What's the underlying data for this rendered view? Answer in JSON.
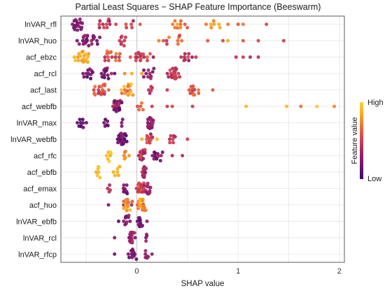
{
  "chart_data": {
    "type": "scatter",
    "subtype": "beeswarm",
    "title": "Partial Least Squares − SHAP Feature Importance (Beeswarm)",
    "xlabel": "SHAP value",
    "ylabel": "",
    "xlim": [
      -0.75,
      2.05
    ],
    "xticks": [
      0,
      1,
      2
    ],
    "grid": true,
    "legend": {
      "title": "Feature value",
      "high_label": "High",
      "low_label": "Low",
      "placement": "right",
      "colormap": [
        "#3b0a6b",
        "#6b1470",
        "#9c2468",
        "#cc3f55",
        "#ed6a38",
        "#f8a81a",
        "#f9d43a"
      ]
    },
    "features": [
      {
        "name": "lnVAR_rfl",
        "clusters": [
          {
            "center": -0.6,
            "spread": 0.12,
            "count": 20,
            "v": [
              0.15,
              0.35
            ]
          },
          {
            "center": -0.3,
            "spread": 0.12,
            "count": 12,
            "v": [
              0.35,
              0.55
            ]
          },
          {
            "center": -0.05,
            "spread": 0.1,
            "count": 6,
            "v": [
              0.35,
              0.6
            ]
          },
          {
            "center": 0.4,
            "spread": 0.16,
            "count": 10,
            "v": [
              0.55,
              0.85
            ]
          },
          {
            "center": 0.75,
            "spread": 0.08,
            "count": 6,
            "v": [
              0.7,
              0.9
            ]
          }
        ],
        "points": [
          [
            1.0,
            0.6
          ],
          [
            1.05,
            0.7
          ],
          [
            1.28,
            0.55
          ],
          [
            0.82,
            0.85
          ],
          [
            0.9,
            0.7
          ]
        ]
      },
      {
        "name": "lnVAR_huo",
        "clusters": [
          {
            "center": -0.48,
            "spread": 0.14,
            "count": 26,
            "v": [
              0.1,
              0.35
            ]
          },
          {
            "center": -0.15,
            "spread": 0.1,
            "count": 8,
            "v": [
              0.3,
              0.55
            ]
          },
          {
            "center": 0.35,
            "spread": 0.18,
            "count": 10,
            "v": [
              0.45,
              0.75
            ]
          }
        ],
        "points": [
          [
            0.85,
            0.55
          ],
          [
            0.9,
            0.85
          ],
          [
            1.05,
            0.6
          ],
          [
            1.2,
            0.55
          ],
          [
            1.45,
            0.5
          ],
          [
            0.7,
            0.6
          ]
        ]
      },
      {
        "name": "acf_ebzc",
        "clusters": [
          {
            "center": -0.55,
            "spread": 0.12,
            "count": 22,
            "v": [
              0.75,
              0.95
            ]
          },
          {
            "center": -0.25,
            "spread": 0.12,
            "count": 16,
            "v": [
              0.4,
              0.75
            ]
          },
          {
            "center": 0.05,
            "spread": 0.15,
            "count": 18,
            "v": [
              0.3,
              0.65
            ]
          },
          {
            "center": 0.5,
            "spread": 0.12,
            "count": 10,
            "v": [
              0.3,
              0.55
            ]
          }
        ],
        "points": [
          [
            0.98,
            0.45
          ],
          [
            1.05,
            0.5
          ],
          [
            1.12,
            0.4
          ],
          [
            1.2,
            0.45
          ]
        ]
      },
      {
        "name": "acf_rcl",
        "clusters": [
          {
            "center": -0.5,
            "spread": 0.12,
            "count": 12,
            "v": [
              0.05,
              0.3
            ]
          },
          {
            "center": -0.28,
            "spread": 0.1,
            "count": 14,
            "v": [
              0.1,
              0.4
            ]
          },
          {
            "center": 0.1,
            "spread": 0.12,
            "count": 10,
            "v": [
              0.2,
              0.45
            ]
          },
          {
            "center": 0.37,
            "spread": 0.08,
            "count": 22,
            "v": [
              0.35,
              0.55
            ]
          }
        ],
        "points": [
          [
            -0.12,
            0.75
          ],
          [
            -0.05,
            0.85
          ],
          [
            0.05,
            0.8
          ]
        ]
      },
      {
        "name": "acf_last",
        "clusters": [
          {
            "center": -0.35,
            "spread": 0.12,
            "count": 20,
            "v": [
              0.35,
              0.7
            ]
          },
          {
            "center": -0.1,
            "spread": 0.08,
            "count": 18,
            "v": [
              0.6,
              0.95
            ]
          },
          {
            "center": 0.15,
            "spread": 0.06,
            "count": 6,
            "v": [
              0.3,
              0.55
            ]
          },
          {
            "center": 0.55,
            "spread": 0.1,
            "count": 14,
            "v": [
              0.45,
              0.75
            ]
          }
        ],
        "points": [
          [
            0.3,
            0.5
          ],
          [
            0.75,
            0.6
          ]
        ]
      },
      {
        "name": "acf_webfb",
        "clusters": [
          {
            "center": -0.2,
            "spread": 0.06,
            "count": 42,
            "v": [
              0.05,
              0.5
            ]
          },
          {
            "center": 0.05,
            "spread": 0.06,
            "count": 5,
            "v": [
              0.5,
              0.75
            ]
          }
        ],
        "points": [
          [
            0.15,
            0.5
          ],
          [
            0.35,
            0.55
          ],
          [
            0.55,
            0.5
          ],
          [
            1.08,
            0.9
          ],
          [
            1.48,
            0.9
          ],
          [
            1.62,
            0.7
          ],
          [
            1.78,
            0.95
          ],
          [
            1.95,
            0.75
          ],
          [
            0.3,
            0.5
          ]
        ]
      },
      {
        "name": "lnVAR_max",
        "clusters": [
          {
            "center": -0.55,
            "spread": 0.06,
            "count": 10,
            "v": [
              0.05,
              0.2
            ]
          },
          {
            "center": -0.3,
            "spread": 0.06,
            "count": 6,
            "v": [
              0.05,
              0.25
            ]
          },
          {
            "center": -0.15,
            "spread": 0.03,
            "count": 3,
            "v": [
              0.1,
              0.25
            ]
          },
          {
            "center": 0.13,
            "spread": 0.05,
            "count": 26,
            "v": [
              0.15,
              0.45
            ]
          }
        ],
        "points": []
      },
      {
        "name": "lnVAR_webfb",
        "clusters": [
          {
            "center": -0.15,
            "spread": 0.06,
            "count": 36,
            "v": [
              0.05,
              0.35
            ]
          },
          {
            "center": 0.12,
            "spread": 0.06,
            "count": 12,
            "v": [
              0.3,
              0.6
            ]
          },
          {
            "center": 0.35,
            "spread": 0.1,
            "count": 8,
            "v": [
              0.35,
              0.55
            ]
          }
        ],
        "points": [
          [
            0.2,
            0.92
          ],
          [
            0.05,
            0.85
          ],
          [
            0.5,
            0.5
          ]
        ]
      },
      {
        "name": "acf_rfc",
        "clusters": [
          {
            "center": -0.28,
            "spread": 0.04,
            "count": 8,
            "v": [
              0.85,
              1.0
            ]
          },
          {
            "center": -0.1,
            "spread": 0.04,
            "count": 6,
            "v": [
              0.7,
              0.9
            ]
          },
          {
            "center": 0.05,
            "spread": 0.05,
            "count": 22,
            "v": [
              0.3,
              0.6
            ]
          },
          {
            "center": 0.2,
            "spread": 0.07,
            "count": 14,
            "v": [
              0.1,
              0.35
            ]
          }
        ],
        "points": [
          [
            0.35,
            0.4
          ],
          [
            0.45,
            0.4
          ]
        ]
      },
      {
        "name": "acf_ebfb",
        "clusters": [
          {
            "center": -0.38,
            "spread": 0.04,
            "count": 8,
            "v": [
              0.85,
              1.0
            ]
          },
          {
            "center": -0.2,
            "spread": 0.05,
            "count": 6,
            "v": [
              0.8,
              0.95
            ]
          },
          {
            "center": 0.07,
            "spread": 0.025,
            "count": 22,
            "v": [
              0.25,
              0.5
            ]
          }
        ],
        "points": []
      },
      {
        "name": "acf_emax",
        "clusters": [
          {
            "center": -0.28,
            "spread": 0.03,
            "count": 4,
            "v": [
              0.25,
              0.45
            ]
          },
          {
            "center": -0.12,
            "spread": 0.04,
            "count": 10,
            "v": [
              0.1,
              0.3
            ]
          },
          {
            "center": 0.04,
            "spread": 0.06,
            "count": 30,
            "v": [
              0.35,
              0.7
            ]
          },
          {
            "center": 0.12,
            "spread": 0.05,
            "count": 12,
            "v": [
              0.25,
              0.45
            ]
          }
        ],
        "points": []
      },
      {
        "name": "acf_huo",
        "clusters": [
          {
            "center": -0.1,
            "spread": 0.06,
            "count": 26,
            "v": [
              0.35,
              0.95
            ]
          },
          {
            "center": 0.05,
            "spread": 0.07,
            "count": 26,
            "v": [
              0.55,
              0.95
            ]
          }
        ],
        "points": [
          [
            -0.28,
            0.25
          ]
        ]
      },
      {
        "name": "lnVAR_ebfb",
        "clusters": [
          {
            "center": -0.1,
            "spread": 0.05,
            "count": 10,
            "v": [
              0.15,
              0.35
            ]
          },
          {
            "center": 0.03,
            "spread": 0.03,
            "count": 14,
            "v": [
              0.1,
              0.3
            ]
          }
        ],
        "points": [
          [
            -0.18,
            0.15
          ],
          [
            0.1,
            0.3
          ]
        ]
      },
      {
        "name": "lnVAR_rcl",
        "clusters": [
          {
            "center": -0.05,
            "spread": 0.05,
            "count": 20,
            "v": [
              0.2,
              0.45
            ]
          },
          {
            "center": 0.1,
            "spread": 0.02,
            "count": 4,
            "v": [
              0.25,
              0.4
            ]
          }
        ],
        "points": [
          [
            -0.22,
            0.3
          ]
        ]
      },
      {
        "name": "lnVAR_rfcp",
        "clusters": [
          {
            "center": -0.05,
            "spread": 0.08,
            "count": 12,
            "v": [
              0.1,
              0.3
            ]
          },
          {
            "center": 0.1,
            "spread": 0.04,
            "count": 6,
            "v": [
              0.2,
              0.4
            ]
          }
        ],
        "points": [
          [
            -0.22,
            0.2
          ],
          [
            0.15,
            0.3
          ]
        ]
      }
    ]
  }
}
